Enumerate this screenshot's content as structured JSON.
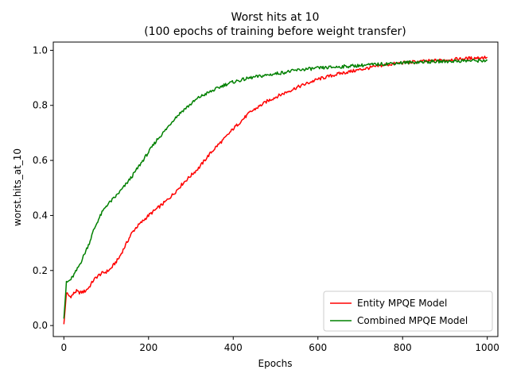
{
  "chart_data": {
    "type": "line",
    "title": "Worst hits at 10",
    "subtitle": "(100 epochs of training before weight transfer)",
    "xlabel": "Epochs",
    "ylabel": "worst.hits_at_10",
    "xlim": [
      -25,
      1025
    ],
    "ylim": [
      -0.04,
      1.03
    ],
    "xticks": [
      0,
      200,
      400,
      600,
      800,
      1000
    ],
    "yticks": [
      0.0,
      0.2,
      0.4,
      0.6,
      0.8,
      1.0
    ],
    "xtick_labels": [
      "0",
      "200",
      "400",
      "600",
      "800",
      "1000"
    ],
    "ytick_labels": [
      "0.0",
      "0.2",
      "0.4",
      "0.6",
      "0.8",
      "1.0"
    ],
    "grid": false,
    "legend_position": "lower-right",
    "series": [
      {
        "name": "Entity MPQE Model",
        "color": "#ff0000",
        "x": [
          0,
          3,
          6,
          10,
          15,
          20,
          25,
          30,
          35,
          40,
          50,
          60,
          70,
          80,
          90,
          100,
          110,
          120,
          130,
          140,
          150,
          160,
          170,
          180,
          190,
          200,
          220,
          240,
          260,
          280,
          300,
          320,
          340,
          360,
          380,
          400,
          420,
          440,
          460,
          480,
          500,
          550,
          600,
          650,
          700,
          750,
          800,
          850,
          900,
          950,
          1000
        ],
        "values": [
          0.005,
          0.06,
          0.12,
          0.11,
          0.105,
          0.11,
          0.12,
          0.125,
          0.12,
          0.12,
          0.125,
          0.14,
          0.165,
          0.18,
          0.19,
          0.195,
          0.205,
          0.225,
          0.245,
          0.275,
          0.305,
          0.335,
          0.355,
          0.37,
          0.385,
          0.4,
          0.425,
          0.45,
          0.48,
          0.515,
          0.545,
          0.575,
          0.615,
          0.65,
          0.68,
          0.715,
          0.745,
          0.775,
          0.795,
          0.815,
          0.83,
          0.865,
          0.895,
          0.915,
          0.93,
          0.945,
          0.955,
          0.96,
          0.965,
          0.97,
          0.975
        ]
      },
      {
        "name": "Combined MPQE Model",
        "color": "#008000",
        "x": [
          0,
          3,
          6,
          10,
          15,
          20,
          30,
          40,
          50,
          60,
          70,
          80,
          90,
          100,
          120,
          140,
          160,
          180,
          200,
          220,
          240,
          260,
          280,
          300,
          320,
          340,
          360,
          380,
          400,
          440,
          480,
          520,
          560,
          600,
          650,
          700,
          750,
          800,
          850,
          900,
          950,
          1000
        ],
        "values": [
          0.025,
          0.09,
          0.155,
          0.16,
          0.165,
          0.175,
          0.2,
          0.23,
          0.265,
          0.3,
          0.345,
          0.38,
          0.41,
          0.435,
          0.465,
          0.5,
          0.54,
          0.585,
          0.63,
          0.675,
          0.71,
          0.75,
          0.78,
          0.805,
          0.83,
          0.845,
          0.86,
          0.875,
          0.885,
          0.9,
          0.91,
          0.92,
          0.93,
          0.935,
          0.94,
          0.945,
          0.95,
          0.955,
          0.958,
          0.96,
          0.962,
          0.963
        ]
      }
    ]
  }
}
